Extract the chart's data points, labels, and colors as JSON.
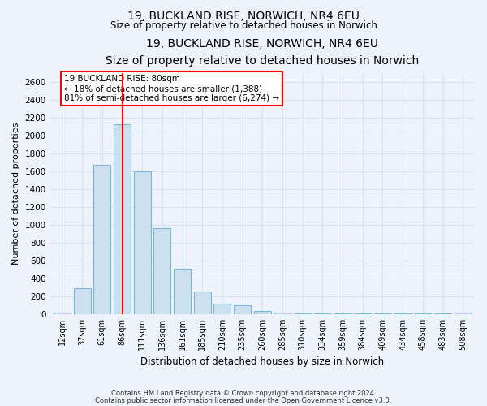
{
  "title_line1": "19, BUCKLAND RISE, NORWICH, NR4 6EU",
  "title_line2": "Size of property relative to detached houses in Norwich",
  "xlabel": "Distribution of detached houses by size in Norwich",
  "ylabel": "Number of detached properties",
  "categories": [
    "12sqm",
    "37sqm",
    "61sqm",
    "86sqm",
    "111sqm",
    "136sqm",
    "161sqm",
    "185sqm",
    "210sqm",
    "235sqm",
    "260sqm",
    "285sqm",
    "310sqm",
    "334sqm",
    "359sqm",
    "384sqm",
    "409sqm",
    "434sqm",
    "458sqm",
    "483sqm",
    "508sqm"
  ],
  "values": [
    20,
    295,
    1670,
    2130,
    1600,
    960,
    505,
    250,
    120,
    95,
    35,
    15,
    5,
    5,
    5,
    5,
    5,
    5,
    5,
    5,
    15
  ],
  "bar_color": "#cce0f0",
  "bar_edge_color": "#7ab8d8",
  "vline_x": 3.5,
  "vline_color": "red",
  "annotation_text": "19 BUCKLAND RISE: 80sqm\n← 18% of detached houses are smaller (1,388)\n81% of semi-detached houses are larger (6,274) →",
  "annotation_box_color": "white",
  "annotation_box_edge": "red",
  "ylim": [
    0,
    2700
  ],
  "yticks": [
    0,
    200,
    400,
    600,
    800,
    1000,
    1200,
    1400,
    1600,
    1800,
    2000,
    2200,
    2400,
    2600
  ],
  "footer_line1": "Contains HM Land Registry data © Crown copyright and database right 2024.",
  "footer_line2": "Contains public sector information licensed under the Open Government Licence v3.0.",
  "background_color": "#eef3fb",
  "grid_color": "#d8e4f0"
}
